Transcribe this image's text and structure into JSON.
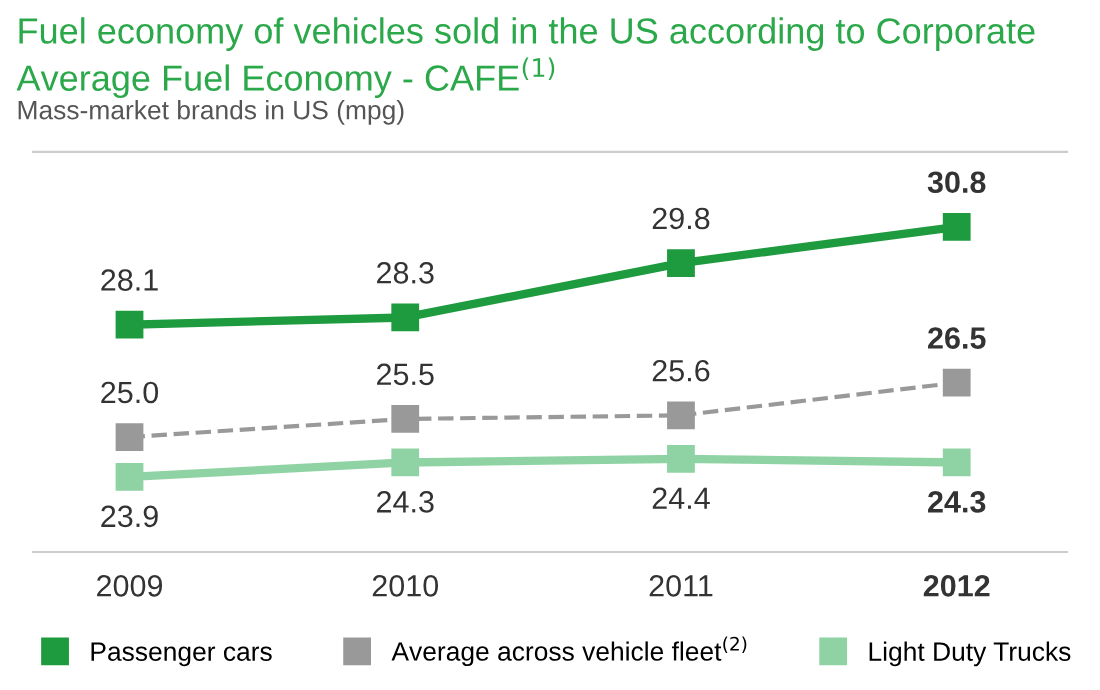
{
  "chart_data": {
    "type": "line",
    "title": "Fuel economy of vehicles sold in the US according to Corporate Average Fuel Economy - CAFE$^{(1)}$",
    "subtitle": "Mass-market brands in US (mpg)",
    "categories": [
      "2009",
      "2010",
      "2011",
      "2012"
    ],
    "series": [
      {
        "name": "Passenger cars",
        "color": "#1e9a3f",
        "values": [
          28.1,
          28.3,
          29.8,
          30.8
        ],
        "value_labels": [
          "28.1",
          "28.3",
          "29.8",
          "30.8"
        ],
        "line_style": "solid"
      },
      {
        "name": "Average across vehicle fleet$^{(2)}$",
        "color": "#999999",
        "values": [
          25.0,
          25.5,
          25.6,
          26.5
        ],
        "value_labels": [
          "25.0",
          "25.5",
          "25.6",
          "26.5"
        ],
        "line_style": "dashed"
      },
      {
        "name": "Light Duty Trucks",
        "color": "#8fd3a4",
        "values": [
          23.9,
          24.3,
          24.4,
          24.3
        ],
        "value_labels": [
          "23.9",
          "24.3",
          "24.4",
          "24.3"
        ],
        "line_style": "solid"
      }
    ],
    "marker": "square",
    "legend": "bottom",
    "grid": false,
    "tick_labels": "x"
  }
}
